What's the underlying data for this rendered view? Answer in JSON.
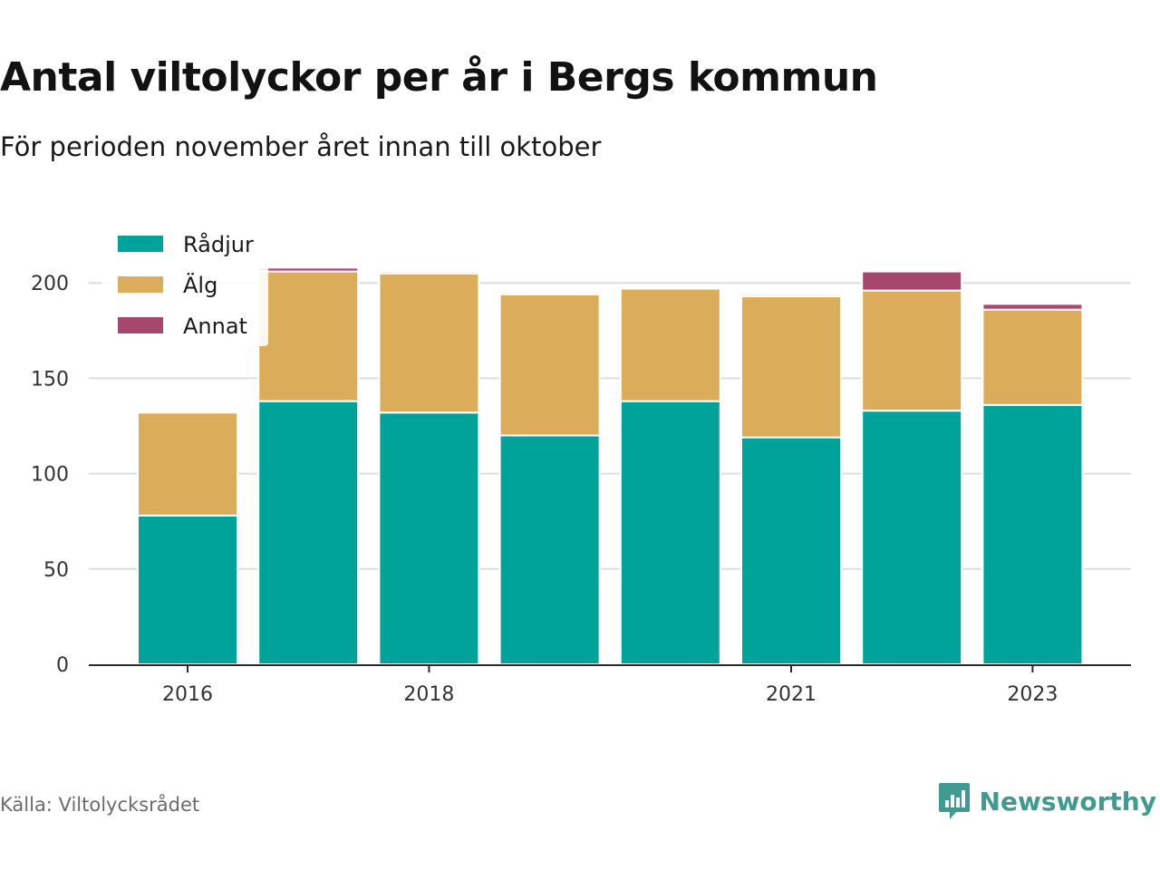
{
  "title": "Antal viltolyckor per år i Bergs kommun",
  "subtitle": "För perioden november året innan till oktober",
  "source": "Källa: Viltolycksrådet",
  "brand": {
    "name": "Newsworthy",
    "icon": "newsworthy-logo-icon",
    "color": "#3f9a90"
  },
  "chart_data": {
    "type": "bar",
    "stacked": true,
    "categories": [
      "2016",
      "2017",
      "2018",
      "2019",
      "2020",
      "2021",
      "2022",
      "2023"
    ],
    "x_tick_labels": [
      "2016",
      "",
      "2018",
      "",
      "",
      "2021",
      "",
      "2023"
    ],
    "series": [
      {
        "name": "Rådjur",
        "color": "#00a39a",
        "values": [
          78,
          138,
          132,
          120,
          138,
          119,
          133,
          136
        ]
      },
      {
        "name": "Älg",
        "color": "#dbad5a",
        "values": [
          54,
          68,
          73,
          74,
          59,
          74,
          63,
          50
        ]
      },
      {
        "name": "Annat",
        "color": "#a8476e",
        "values": [
          0,
          2,
          1,
          0,
          0,
          1,
          10,
          3
        ]
      }
    ],
    "ylim": [
      0,
      225
    ],
    "yticks": [
      0,
      50,
      100,
      150,
      200
    ],
    "grid": true,
    "legend_position": "top-left"
  }
}
